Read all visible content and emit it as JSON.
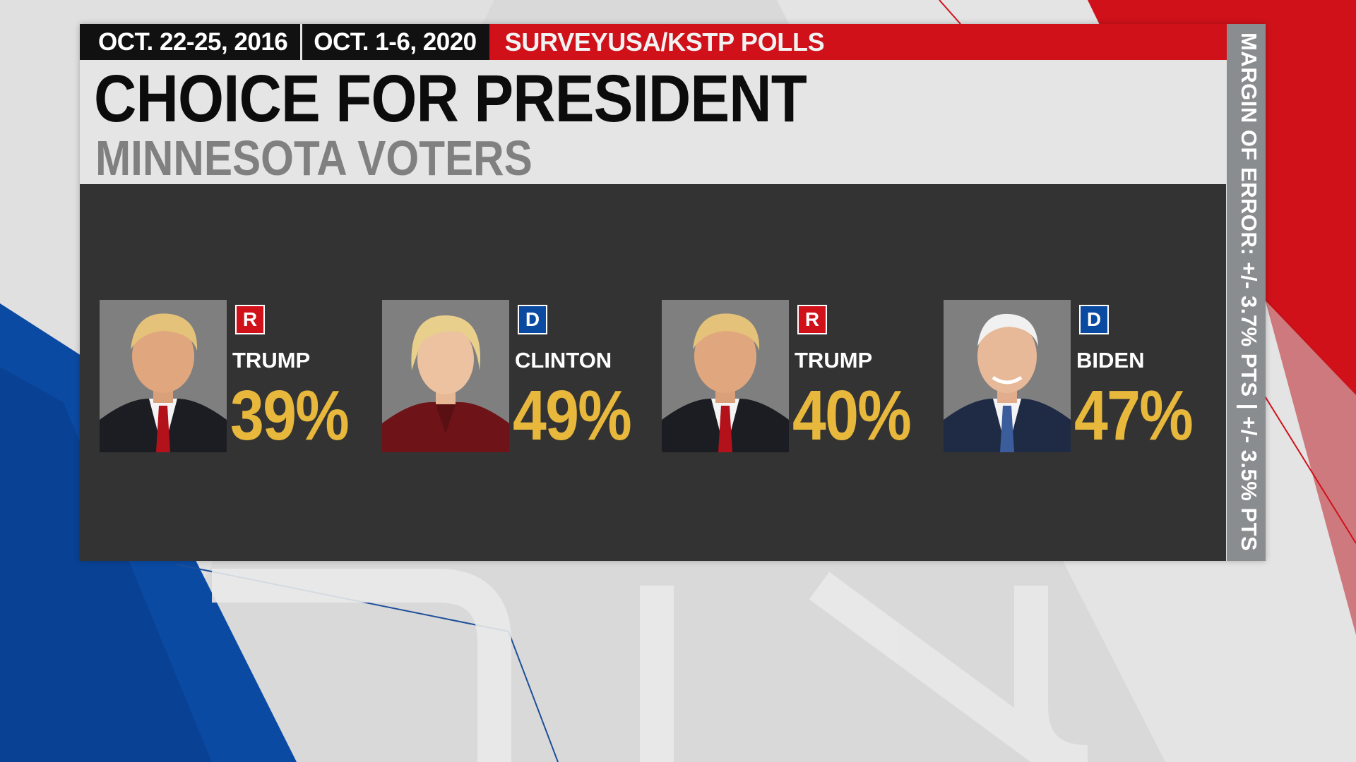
{
  "header": {
    "date_2016": "OCT. 22-25, 2016",
    "date_2020": "OCT. 1-6, 2020",
    "source": "SURVEYUSA/KSTP POLLS"
  },
  "title": "CHOICE FOR PRESIDENT",
  "subtitle": "MINNESOTA VOTERS",
  "margin_of_error": "MARGIN OF ERROR: +/- 3.7% PTS | +/- 3.5% PTS",
  "candidates": [
    {
      "name": "TRUMP",
      "party": "R",
      "pct": "39%",
      "value": 39,
      "party_color": "#d0111a"
    },
    {
      "name": "CLINTON",
      "party": "D",
      "pct": "49%",
      "value": 49,
      "party_color": "#0a4aa0"
    },
    {
      "name": "TRUMP",
      "party": "R",
      "pct": "40%",
      "value": 40,
      "party_color": "#d0111a"
    },
    {
      "name": "BIDEN",
      "party": "D",
      "pct": "47%",
      "value": 47,
      "party_color": "#0a4aa0"
    }
  ],
  "colors": {
    "accent_red": "#d0111a",
    "accent_blue": "#0a4aa0",
    "percent_gold": "#e8b83c",
    "panel_dark": "#333333"
  }
}
